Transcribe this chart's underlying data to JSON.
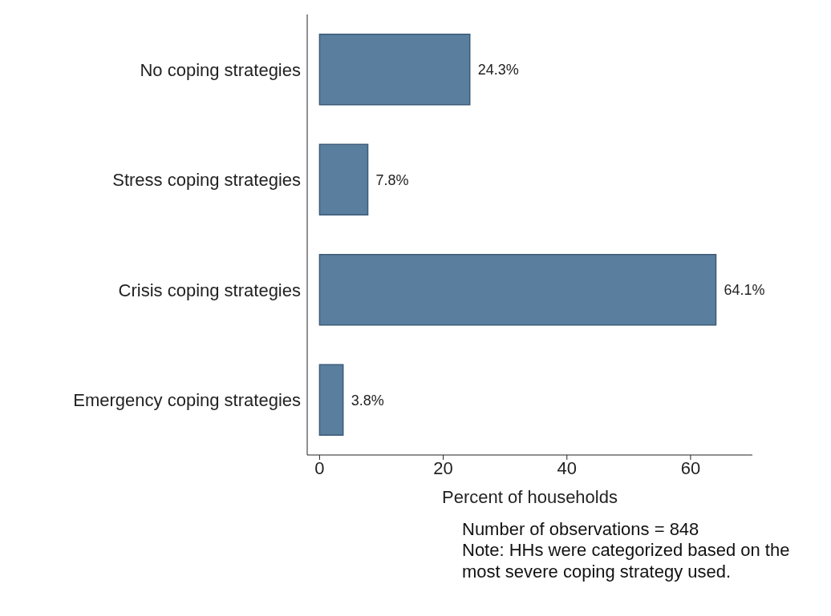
{
  "chart_data": {
    "type": "bar",
    "orientation": "horizontal",
    "categories": [
      "No coping strategies",
      "Stress coping strategies",
      "Crisis coping strategies",
      "Emergency coping strategies"
    ],
    "values": [
      24.3,
      7.8,
      64.1,
      3.8
    ],
    "value_labels": [
      "24.3%",
      "7.8%",
      "64.1%",
      "3.8%"
    ],
    "color": "#5a7f9e",
    "xlabel": "Percent of households",
    "xlim": [
      -2,
      70
    ],
    "xticks": [
      0,
      20,
      40,
      60
    ],
    "grid": false,
    "annotations": [
      "Number of observations = 848",
      "Note: HHs were categorized based on the most severe coping strategy used."
    ]
  }
}
